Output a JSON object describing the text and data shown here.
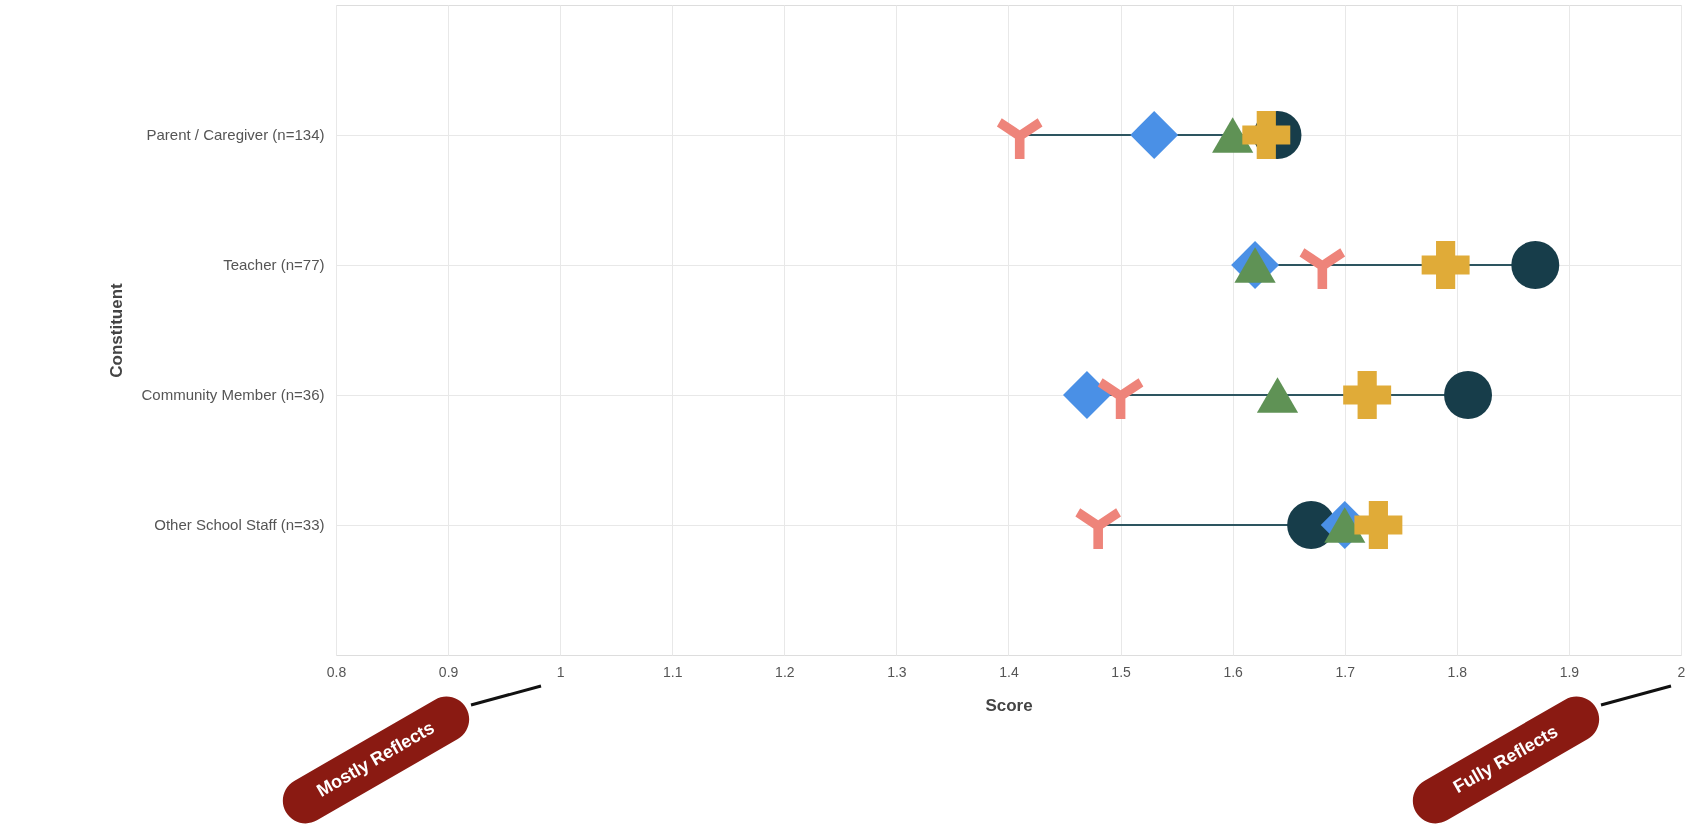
{
  "chart_data": {
    "type": "scatter",
    "xlabel": "Score",
    "ylabel": "Constituent",
    "categories": [
      "Parent / Caregiver (n=134)",
      "Teacher (n=77)",
      "Community Member (n=36)",
      "Other School Staff (n=33)"
    ],
    "series": [
      {
        "color": "#173d4a",
        "marker": "circle",
        "values": [
          1.64,
          1.87,
          1.81,
          1.67
        ]
      },
      {
        "color": "#4a90e6",
        "marker": "diamond",
        "values": [
          1.53,
          1.62,
          1.47,
          1.7
        ]
      },
      {
        "color": "#5f9255",
        "marker": "triangle",
        "values": [
          1.6,
          1.62,
          1.64,
          1.7
        ]
      },
      {
        "color": "#e0ab38",
        "marker": "cross",
        "values": [
          1.63,
          1.79,
          1.72,
          1.73
        ]
      },
      {
        "color": "#ee847a",
        "marker": "star",
        "values": [
          1.41,
          1.68,
          1.5,
          1.48
        ]
      }
    ],
    "xlim": [
      0.8,
      2
    ],
    "xticks": [
      0.8,
      0.9,
      1,
      1.1,
      1.2,
      1.3,
      1.4,
      1.5,
      1.6,
      1.7,
      1.8,
      1.9,
      2
    ],
    "grid": true,
    "orientation": "horizontal",
    "annotations": [
      "Mostly Reflects",
      "Fully Reflects"
    ]
  }
}
